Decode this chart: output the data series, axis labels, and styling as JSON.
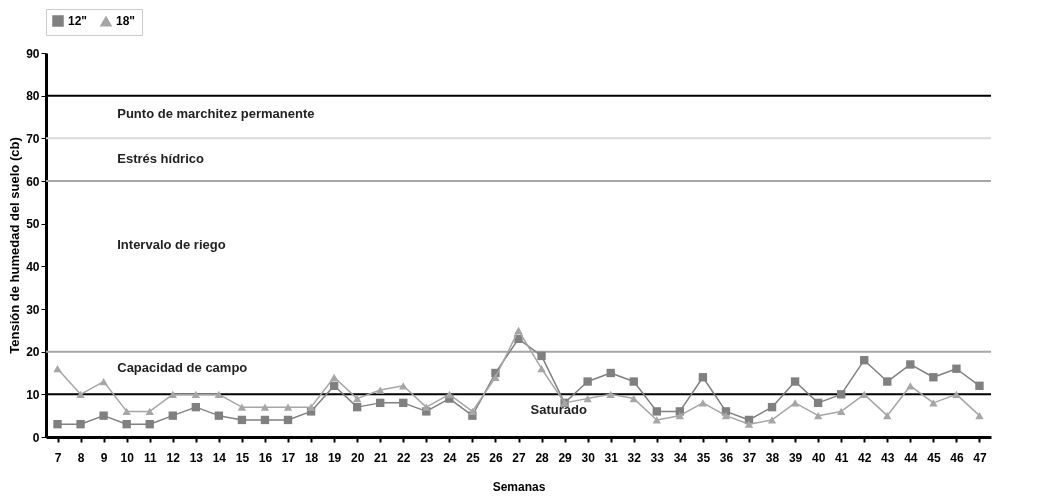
{
  "chart_data": {
    "type": "line",
    "xlabel": "Semanas",
    "ylabel": "Tensión de humedad del suelo (cb)",
    "categories": [
      "7",
      "8",
      "9",
      "10",
      "11",
      "12",
      "13",
      "14",
      "15",
      "16",
      "17",
      "18",
      "19",
      "20",
      "21",
      "22",
      "23",
      "24",
      "25",
      "26",
      "27",
      "28",
      "29",
      "30",
      "31",
      "32",
      "33",
      "34",
      "35",
      "36",
      "37",
      "38",
      "39",
      "40",
      "41",
      "42",
      "43",
      "44",
      "45",
      "46",
      "47"
    ],
    "series": [
      {
        "name": "12\"",
        "color": "#808080",
        "marker": "square",
        "values": [
          3,
          3,
          5,
          3,
          3,
          5,
          7,
          5,
          4,
          4,
          4,
          6,
          12,
          7,
          8,
          8,
          6,
          9,
          5,
          15,
          23,
          19,
          8,
          13,
          15,
          13,
          6,
          6,
          14,
          6,
          4,
          7,
          13,
          8,
          10,
          18,
          13,
          17,
          14,
          16,
          12
        ]
      },
      {
        "name": "18\"",
        "color": "#a6a6a6",
        "marker": "triangle",
        "values": [
          16,
          10,
          13,
          6,
          6,
          10,
          10,
          10,
          7,
          7,
          7,
          7,
          14,
          9,
          11,
          12,
          7,
          10,
          6,
          14,
          25,
          16,
          8,
          9,
          10,
          9,
          4,
          5,
          8,
          5,
          3,
          4,
          8,
          5,
          6,
          10,
          5,
          12,
          8,
          10,
          5
        ]
      }
    ],
    "ylim": [
      0,
      90
    ],
    "yticks": [
      0,
      10,
      20,
      30,
      40,
      50,
      60,
      70,
      80,
      90
    ],
    "grid": false,
    "legend": "top",
    "ref_lines": [
      {
        "axis": "y",
        "value": 80,
        "color": "#000000"
      },
      {
        "axis": "y",
        "value": 70,
        "color": "#d9d9d9"
      },
      {
        "axis": "y",
        "value": 60,
        "color": "#a6a6a6"
      },
      {
        "axis": "y",
        "value": 20,
        "color": "#a6a6a6"
      },
      {
        "axis": "y",
        "value": 10,
        "color": "#000000"
      }
    ],
    "annotations": [
      "Punto de marchitez permanente",
      "Estrés hídrico",
      "Intervalo de riego",
      "Capacidad de campo",
      "Saturado"
    ]
  }
}
